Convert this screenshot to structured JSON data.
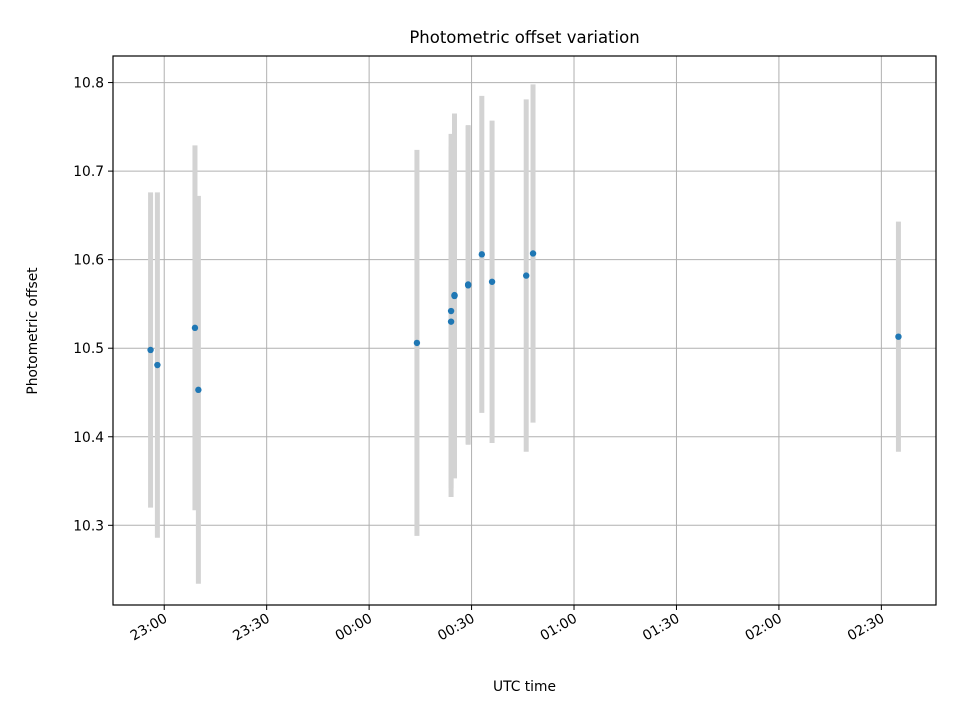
{
  "chart_data": {
    "type": "scatter",
    "title": "Photometric offset variation",
    "xlabel": "UTC time",
    "ylabel": "Photometric offset",
    "x_tick_labels": [
      "23:00",
      "23:30",
      "00:00",
      "00:30",
      "01:00",
      "01:30",
      "02:00",
      "02:30"
    ],
    "y_tick_labels": [
      "10.3",
      "10.4",
      "10.5",
      "10.6",
      "10.7",
      "10.8"
    ],
    "y_ticks": [
      10.3,
      10.4,
      10.5,
      10.6,
      10.7,
      10.8
    ],
    "x_tick_minutes": [
      0,
      30,
      60,
      90,
      120,
      150,
      180,
      210
    ],
    "xlim": [
      "22:45",
      "02:46"
    ],
    "ylim": [
      10.21,
      10.83
    ],
    "grid": true,
    "point_color": "#1f77b4",
    "errorbar_color": "#d3d3d3",
    "points": [
      {
        "time": "22:56",
        "y": 10.498,
        "err": 0.178
      },
      {
        "time": "22:58",
        "y": 10.481,
        "err": 0.195
      },
      {
        "time": "23:09",
        "y": 10.523,
        "err": 0.206
      },
      {
        "time": "23:10",
        "y": 10.453,
        "err": 0.219
      },
      {
        "time": "00:14",
        "y": 10.506,
        "err": 0.218
      },
      {
        "time": "00:24",
        "y": 10.53,
        "err": 0.198
      },
      {
        "time": "00:24",
        "y": 10.542,
        "err": 0.2
      },
      {
        "time": "00:25",
        "y": 10.559,
        "err": 0.206
      },
      {
        "time": "00:25",
        "y": 10.56,
        "err": 0.205
      },
      {
        "time": "00:29",
        "y": 10.572,
        "err": 0.18
      },
      {
        "time": "00:29",
        "y": 10.571,
        "err": 0.18
      },
      {
        "time": "00:33",
        "y": 10.606,
        "err": 0.179
      },
      {
        "time": "00:36",
        "y": 10.575,
        "err": 0.182
      },
      {
        "time": "00:46",
        "y": 10.582,
        "err": 0.199
      },
      {
        "time": "00:48",
        "y": 10.607,
        "err": 0.191
      },
      {
        "time": "02:35",
        "y": 10.513,
        "err": 0.13
      }
    ]
  }
}
